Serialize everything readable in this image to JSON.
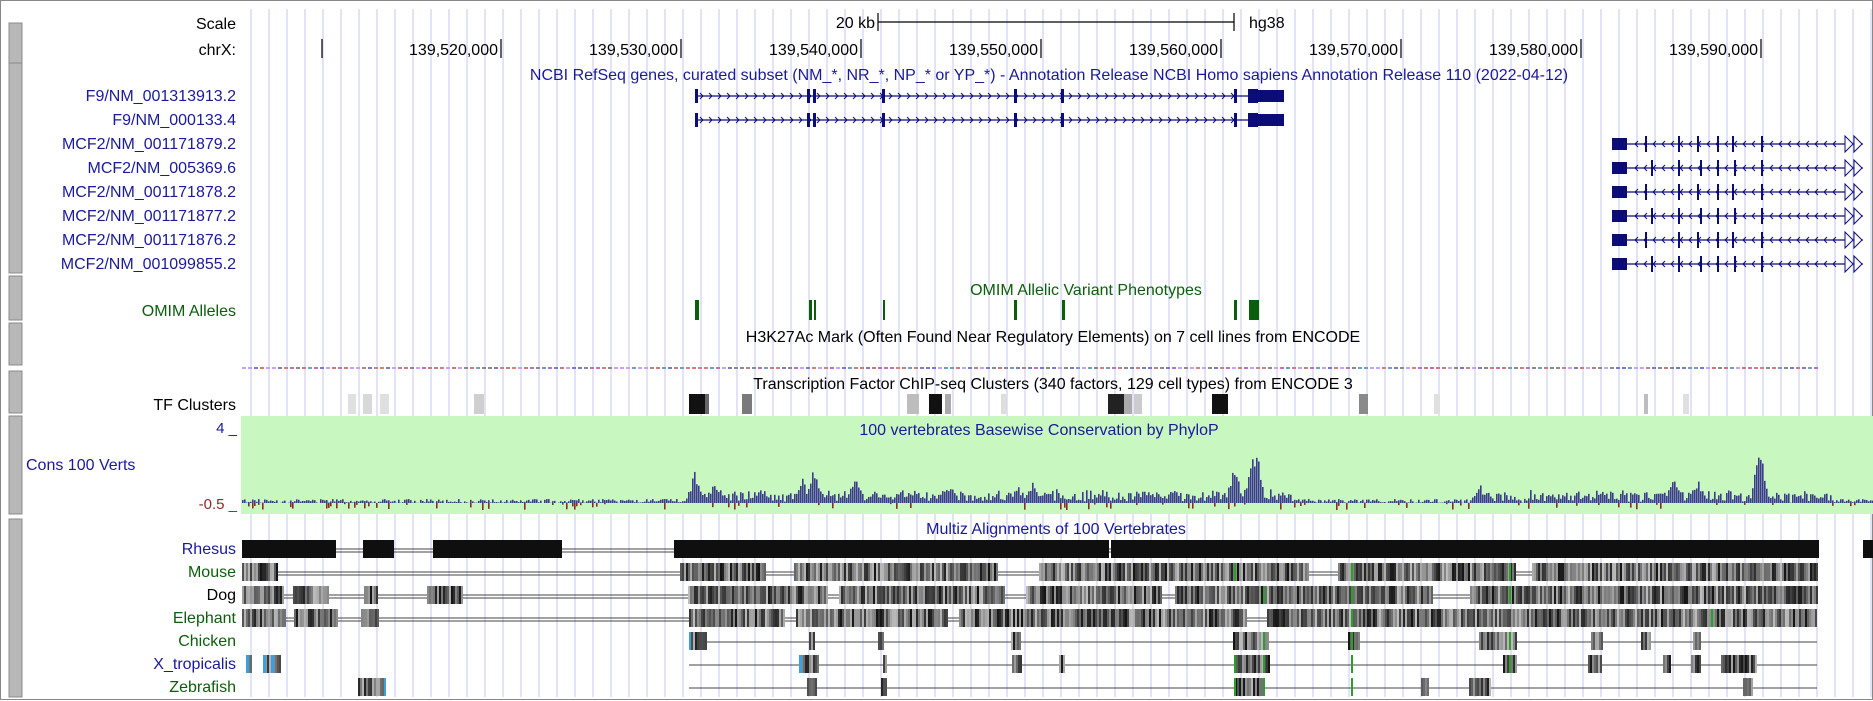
{
  "ruler": {
    "scale_label": "Scale",
    "chrom_label": "chrX:",
    "scale_text": "20 kb",
    "assembly": "hg38",
    "ticks": [
      "139,520,000",
      "139,530,000",
      "139,540,000",
      "139,550,000",
      "139,560,000",
      "139,570,000",
      "139,580,000",
      "139,590,000"
    ]
  },
  "refseq": {
    "title": "NCBI RefSeq genes, curated subset (NM_*, NR_*, NP_* or YP_*) - Annotation Release NCBI Homo sapiens Annotation Release 110 (2022-04-12)",
    "genes": [
      "F9/NM_001313913.2",
      "F9/NM_000133.4",
      "MCF2/NM_001171879.2",
      "MCF2/NM_005369.6",
      "MCF2/NM_001171878.2",
      "MCF2/NM_001171877.2",
      "MCF2/NM_001171876.2",
      "MCF2/NM_001099855.2"
    ]
  },
  "omim": {
    "label": "OMIM Alleles",
    "title": "OMIM Allelic Variant Phenotypes"
  },
  "h3k27ac": {
    "title": "H3K27Ac Mark (Often Found Near Regulatory Elements) on 7 cell lines from ENCODE"
  },
  "tf": {
    "label": "TF Clusters",
    "title": "Transcription Factor ChIP-seq Clusters (340 factors, 129 cell types) from ENCODE 3"
  },
  "phylop": {
    "label": "Cons 100 Verts",
    "title": "100 vertebrates Basewise Conservation by PhyloP",
    "ymax": "4 _",
    "ymin": "-0.5 _"
  },
  "multiz": {
    "title": "Multiz Alignments of 100 Vertebrates",
    "species": [
      "Rhesus",
      "Mouse",
      "Dog",
      "Elephant",
      "Chicken",
      "X_tropicalis",
      "Zebrafish"
    ]
  },
  "colors": {
    "gene": "#0c0c78",
    "gene_label": "#1a1a99",
    "omim": "#0b5e0b",
    "phylop_bg": "#c8f8c0",
    "phylop_bar": "#3c3c8c",
    "phylop_neg": "#8c2a2a",
    "gridline": "#c6c6f2"
  }
}
